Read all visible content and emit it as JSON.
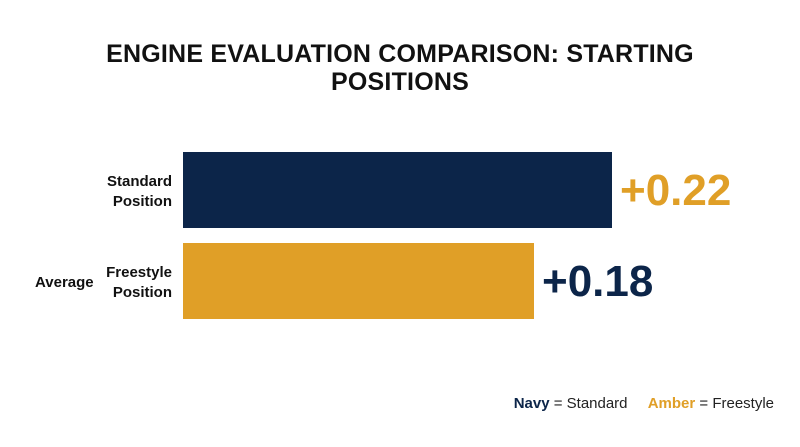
{
  "title_lines": [
    "ENGINE EVALUATION COMPARISON: STARTING",
    "POSITIONS"
  ],
  "chart_data": {
    "type": "bar",
    "orientation": "horizontal",
    "title": "ENGINE EVALUATION COMPARISON: STARTING POSITIONS",
    "categories": [
      {
        "lines": [
          "Standard",
          "Position"
        ],
        "prefix": ""
      },
      {
        "lines": [
          "Freestyle",
          "Position"
        ],
        "prefix": "Average"
      }
    ],
    "values": [
      0.22,
      0.18
    ],
    "value_labels": [
      "+0.22",
      "+0.18"
    ],
    "bar_colors": [
      "#0c2549",
      "#e09f27"
    ],
    "value_label_colors": [
      "#e09f27",
      "#0c2549"
    ],
    "xlim": [
      0,
      0.22
    ],
    "grid": false
  },
  "legend": {
    "placement": "bottom-right",
    "items": [
      {
        "key": "Navy",
        "text": " = Standard",
        "color": "#0c2549"
      },
      {
        "key": "Amber",
        "text": " = Freestyle",
        "color": "#e09f27"
      }
    ]
  }
}
